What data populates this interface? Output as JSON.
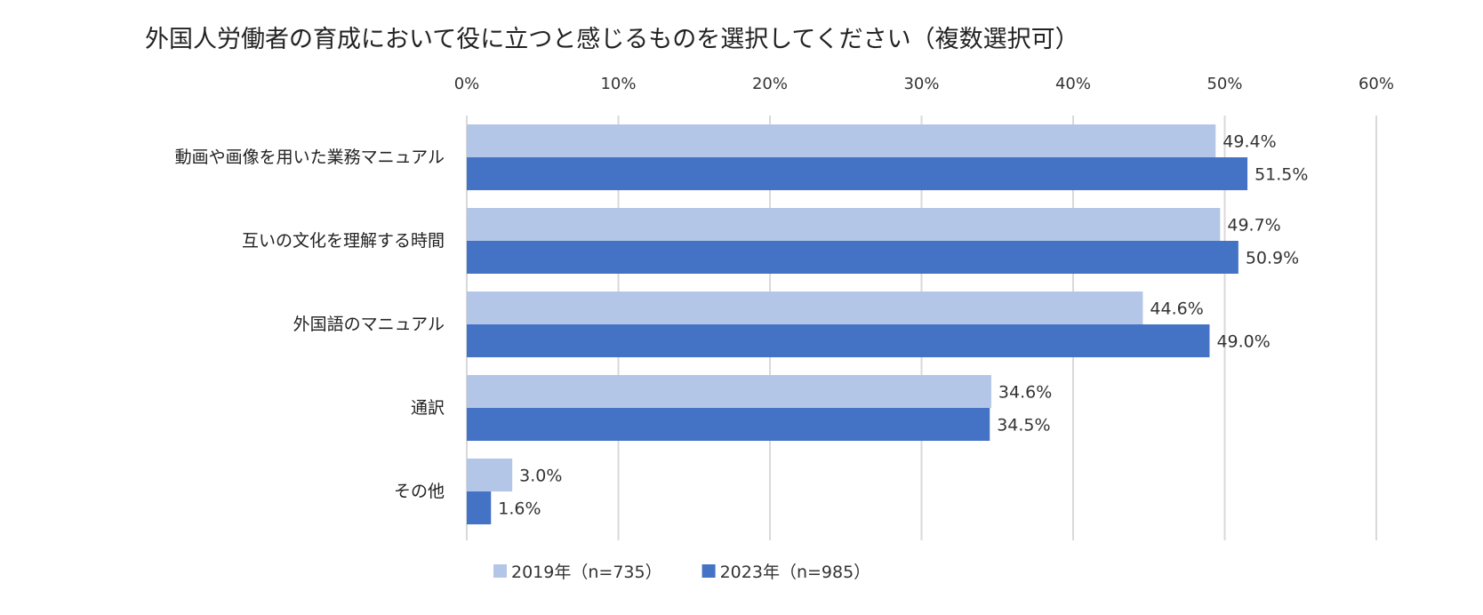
{
  "chart_data": {
    "type": "bar",
    "orientation": "horizontal",
    "title": "外国人労働者の育成において役に立つと感じるものを選択してください（複数選択可）",
    "xlabel": "",
    "ylabel": "",
    "xlim": [
      0,
      60
    ],
    "x_ticks": [
      0,
      10,
      20,
      30,
      40,
      50,
      60
    ],
    "x_tick_labels": [
      "0%",
      "10%",
      "20%",
      "30%",
      "40%",
      "50%",
      "60%"
    ],
    "x_axis_position": "top",
    "grid": true,
    "legend_position": "bottom",
    "categories": [
      "動画や画像を用いた業務マニュアル",
      "互いの文化を理解する時間",
      "外国語のマニュアル",
      "通訳",
      "その他"
    ],
    "series": [
      {
        "name": "2019年（n=735）",
        "color": "#b4c6e7",
        "values": [
          49.4,
          49.7,
          44.6,
          34.6,
          3.0
        ],
        "labels": [
          "49.4%",
          "49.7%",
          "44.6%",
          "34.6%",
          "3.0%"
        ]
      },
      {
        "name": "2023年（n=985）",
        "color": "#4472c4",
        "values": [
          51.5,
          50.9,
          49.0,
          34.5,
          1.6
        ],
        "labels": [
          "51.5%",
          "50.9%",
          "49.0%",
          "34.5%",
          "1.6%"
        ]
      }
    ]
  }
}
